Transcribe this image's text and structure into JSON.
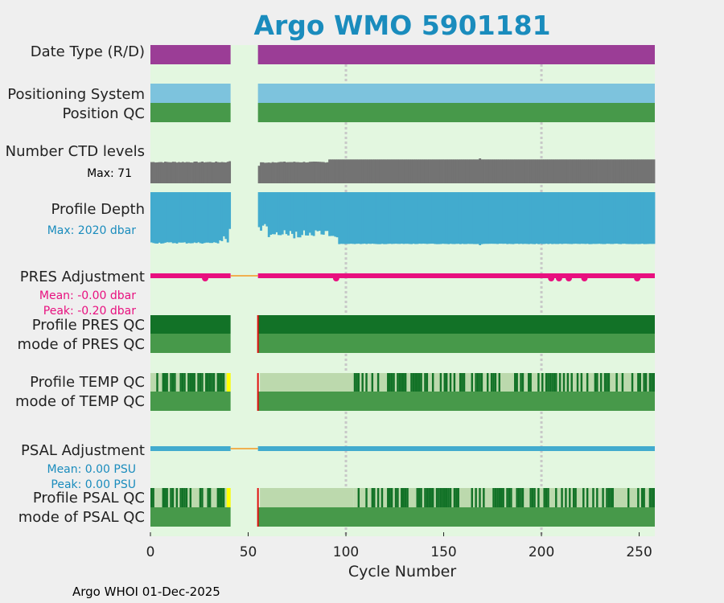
{
  "chart_data": {
    "type": "timeline",
    "title": "Argo WMO 5901181",
    "xlabel": "Cycle Number",
    "xlim": [
      0,
      258
    ],
    "xticks": [
      0,
      50,
      100,
      150,
      200,
      250
    ],
    "gridlines_x": [
      100,
      200
    ],
    "data_gap_cycles": [
      41,
      55
    ],
    "footer": "Argo WHOI 01-Dec-2025",
    "colors": {
      "background": "#e3f7e0",
      "date_type": "#9b3d96",
      "positioning": "#7dc3dd",
      "qc_good": "#47994a",
      "qc_dark": "#127227",
      "qc_light": "#bcd9ad",
      "ctd": "#737373",
      "depth": "#42abce",
      "pres_adj": "#e8107f",
      "psal_adj": "#42abce",
      "gap_line": "#f0b050",
      "flag_yellow": "#ffff00",
      "flag_red": "#e01010"
    },
    "rows": {
      "date_type": {
        "label": "Date Type (R/D)"
      },
      "positioning": {
        "label": "Positioning System"
      },
      "position_qc": {
        "label": "Position QC"
      },
      "ctd_levels": {
        "label": "Number CTD levels",
        "max_label": "Max: 71",
        "max": 71
      },
      "profile_depth": {
        "label": "Profile Depth",
        "max_label": "Max: 2020 dbar",
        "max": 2020
      },
      "pres_adj": {
        "label": "PRES Adjustment",
        "mean_label": "Mean: -0.00 dbar",
        "peak_label": "Peak: -0.20 dbar",
        "dips": [
          28,
          95,
          205,
          209,
          214,
          222,
          249
        ]
      },
      "profile_pres_qc": {
        "label": "Profile PRES QC"
      },
      "mode_pres_qc": {
        "label": "mode of PRES QC"
      },
      "profile_temp_qc": {
        "label": "Profile TEMP QC",
        "light_range": [
          56,
          104
        ],
        "dark_start": 104
      },
      "mode_temp_qc": {
        "label": "mode of TEMP QC"
      },
      "psal_adj": {
        "label": "PSAL Adjustment",
        "mean_label": "Mean: 0.00 PSU",
        "peak_label": "Peak: 0.00 PSU"
      },
      "profile_psal_qc": {
        "label": "Profile PSAL QC"
      },
      "mode_psal_qc": {
        "label": "mode of PSAL QC"
      }
    }
  }
}
